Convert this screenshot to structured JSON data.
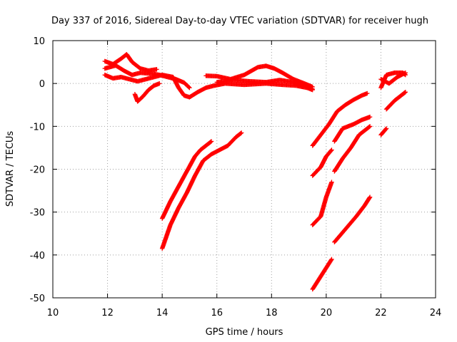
{
  "chart_data": {
    "type": "scatter",
    "title": "Day 337 of 2016, Sidereal Day-to-day VTEC variation (SDTVAR) for receiver hugh",
    "xlabel": "GPS time / hours",
    "ylabel": "SDTVAR / TECUs",
    "xlim": [
      10,
      24
    ],
    "ylim": [
      -50,
      10
    ],
    "xticks": [
      "10",
      "12",
      "14",
      "16",
      "18",
      "20",
      "22",
      "24"
    ],
    "yticks": [
      "10",
      "0",
      "-10",
      "-20",
      "-30",
      "-40",
      "-50"
    ],
    "grid": true,
    "marker": "+",
    "color": "#ff0000",
    "segments": [
      [
        [
          11.9,
          5.2
        ],
        [
          12.2,
          4.5
        ],
        [
          12.5,
          5.8
        ],
        [
          12.7,
          6.8
        ],
        [
          12.9,
          5.0
        ],
        [
          13.2,
          3.5
        ],
        [
          13.5,
          3.0
        ],
        [
          13.8,
          3.3
        ]
      ],
      [
        [
          11.9,
          3.5
        ],
        [
          12.3,
          4.2
        ],
        [
          12.6,
          3.0
        ],
        [
          12.9,
          2.0
        ],
        [
          13.2,
          2.5
        ],
        [
          13.6,
          2.3
        ],
        [
          13.9,
          2.0
        ],
        [
          14.2,
          1.5
        ],
        [
          14.5,
          1.0
        ],
        [
          14.8,
          0.2
        ],
        [
          15.0,
          -1.0
        ]
      ],
      [
        [
          11.9,
          2.0
        ],
        [
          12.2,
          1.2
        ],
        [
          12.5,
          1.5
        ],
        [
          12.8,
          1.0
        ],
        [
          13.1,
          0.5
        ],
        [
          13.4,
          1.0
        ],
        [
          13.7,
          1.5
        ],
        [
          14.0,
          2.0
        ],
        [
          14.4,
          1.5
        ],
        [
          14.6,
          -1.0
        ],
        [
          14.8,
          -2.8
        ],
        [
          15.0,
          -3.2
        ],
        [
          15.3,
          -2.0
        ],
        [
          15.6,
          -1.0
        ],
        [
          15.9,
          -0.5
        ],
        [
          16.3,
          0.0
        ],
        [
          17.0,
          -0.3
        ],
        [
          17.8,
          0.0
        ],
        [
          18.4,
          -0.3
        ],
        [
          18.9,
          -0.5
        ],
        [
          19.3,
          -1.0
        ],
        [
          19.5,
          -1.5
        ]
      ],
      [
        [
          13.0,
          -2.5
        ],
        [
          13.1,
          -4.2
        ],
        [
          13.3,
          -3.0
        ],
        [
          13.5,
          -1.5
        ],
        [
          13.7,
          -0.5
        ],
        [
          13.9,
          0.0
        ]
      ],
      [
        [
          15.6,
          1.8
        ],
        [
          16.0,
          1.7
        ],
        [
          16.5,
          1.0
        ],
        [
          17.0,
          2.0
        ],
        [
          17.5,
          3.8
        ],
        [
          17.8,
          4.1
        ],
        [
          18.1,
          3.5
        ],
        [
          18.4,
          2.5
        ],
        [
          18.8,
          1.0
        ],
        [
          19.2,
          0.0
        ],
        [
          19.5,
          -0.8
        ]
      ],
      [
        [
          16.0,
          0.3
        ],
        [
          16.6,
          0.8
        ],
        [
          17.2,
          0.5
        ],
        [
          17.8,
          0.3
        ],
        [
          18.3,
          0.8
        ],
        [
          18.8,
          0.3
        ],
        [
          19.2,
          -0.5
        ],
        [
          19.5,
          -1.3
        ]
      ],
      [
        [
          14.0,
          -38.5
        ],
        [
          14.3,
          -33.0
        ],
        [
          14.6,
          -29.0
        ],
        [
          14.9,
          -25.5
        ],
        [
          15.2,
          -21.5
        ],
        [
          15.5,
          -18.0
        ],
        [
          15.8,
          -16.5
        ],
        [
          16.1,
          -15.5
        ],
        [
          16.4,
          -14.5
        ],
        [
          16.7,
          -12.5
        ],
        [
          16.9,
          -11.5
        ]
      ],
      [
        [
          14.0,
          -31.5
        ],
        [
          14.3,
          -27.5
        ],
        [
          14.6,
          -24.0
        ],
        [
          14.9,
          -20.5
        ],
        [
          15.2,
          -17.0
        ],
        [
          15.4,
          -15.5
        ],
        [
          15.6,
          -14.5
        ],
        [
          15.8,
          -13.5
        ]
      ],
      [
        [
          19.5,
          -14.5
        ],
        [
          19.8,
          -12.0
        ],
        [
          20.1,
          -9.5
        ],
        [
          20.4,
          -6.5
        ],
        [
          20.7,
          -5.0
        ],
        [
          21.0,
          -3.8
        ],
        [
          21.3,
          -2.8
        ],
        [
          21.5,
          -2.3
        ]
      ],
      [
        [
          19.5,
          -21.5
        ],
        [
          19.8,
          -19.5
        ],
        [
          20.0,
          -17.0
        ],
        [
          20.2,
          -15.5
        ]
      ],
      [
        [
          19.5,
          -33.0
        ],
        [
          19.8,
          -31.0
        ],
        [
          20.0,
          -26.5
        ],
        [
          20.2,
          -23.0
        ]
      ],
      [
        [
          19.5,
          -48.0
        ],
        [
          19.8,
          -45.0
        ],
        [
          20.0,
          -43.0
        ],
        [
          20.2,
          -41.0
        ]
      ],
      [
        [
          20.3,
          -13.5
        ],
        [
          20.6,
          -10.5
        ],
        [
          21.0,
          -9.5
        ],
        [
          21.3,
          -8.5
        ],
        [
          21.6,
          -7.8
        ]
      ],
      [
        [
          20.3,
          -20.5
        ],
        [
          20.6,
          -17.5
        ],
        [
          20.9,
          -15.0
        ],
        [
          21.2,
          -12.0
        ],
        [
          21.6,
          -10.0
        ]
      ],
      [
        [
          20.3,
          -37.0
        ],
        [
          20.7,
          -34.0
        ],
        [
          21.1,
          -31.0
        ],
        [
          21.4,
          -28.5
        ],
        [
          21.6,
          -26.5
        ]
      ],
      [
        [
          22.0,
          -12.0
        ],
        [
          22.2,
          -10.5
        ]
      ],
      [
        [
          22.0,
          -1.0
        ],
        [
          22.2,
          2.0
        ],
        [
          22.5,
          2.5
        ],
        [
          22.8,
          2.5
        ],
        [
          22.9,
          2.0
        ]
      ],
      [
        [
          22.0,
          1.0
        ],
        [
          22.3,
          0.0
        ],
        [
          22.6,
          1.5
        ],
        [
          22.9,
          2.5
        ]
      ],
      [
        [
          22.2,
          -6.0
        ],
        [
          22.5,
          -4.0
        ],
        [
          22.8,
          -2.5
        ],
        [
          22.9,
          -2.0
        ]
      ]
    ]
  }
}
